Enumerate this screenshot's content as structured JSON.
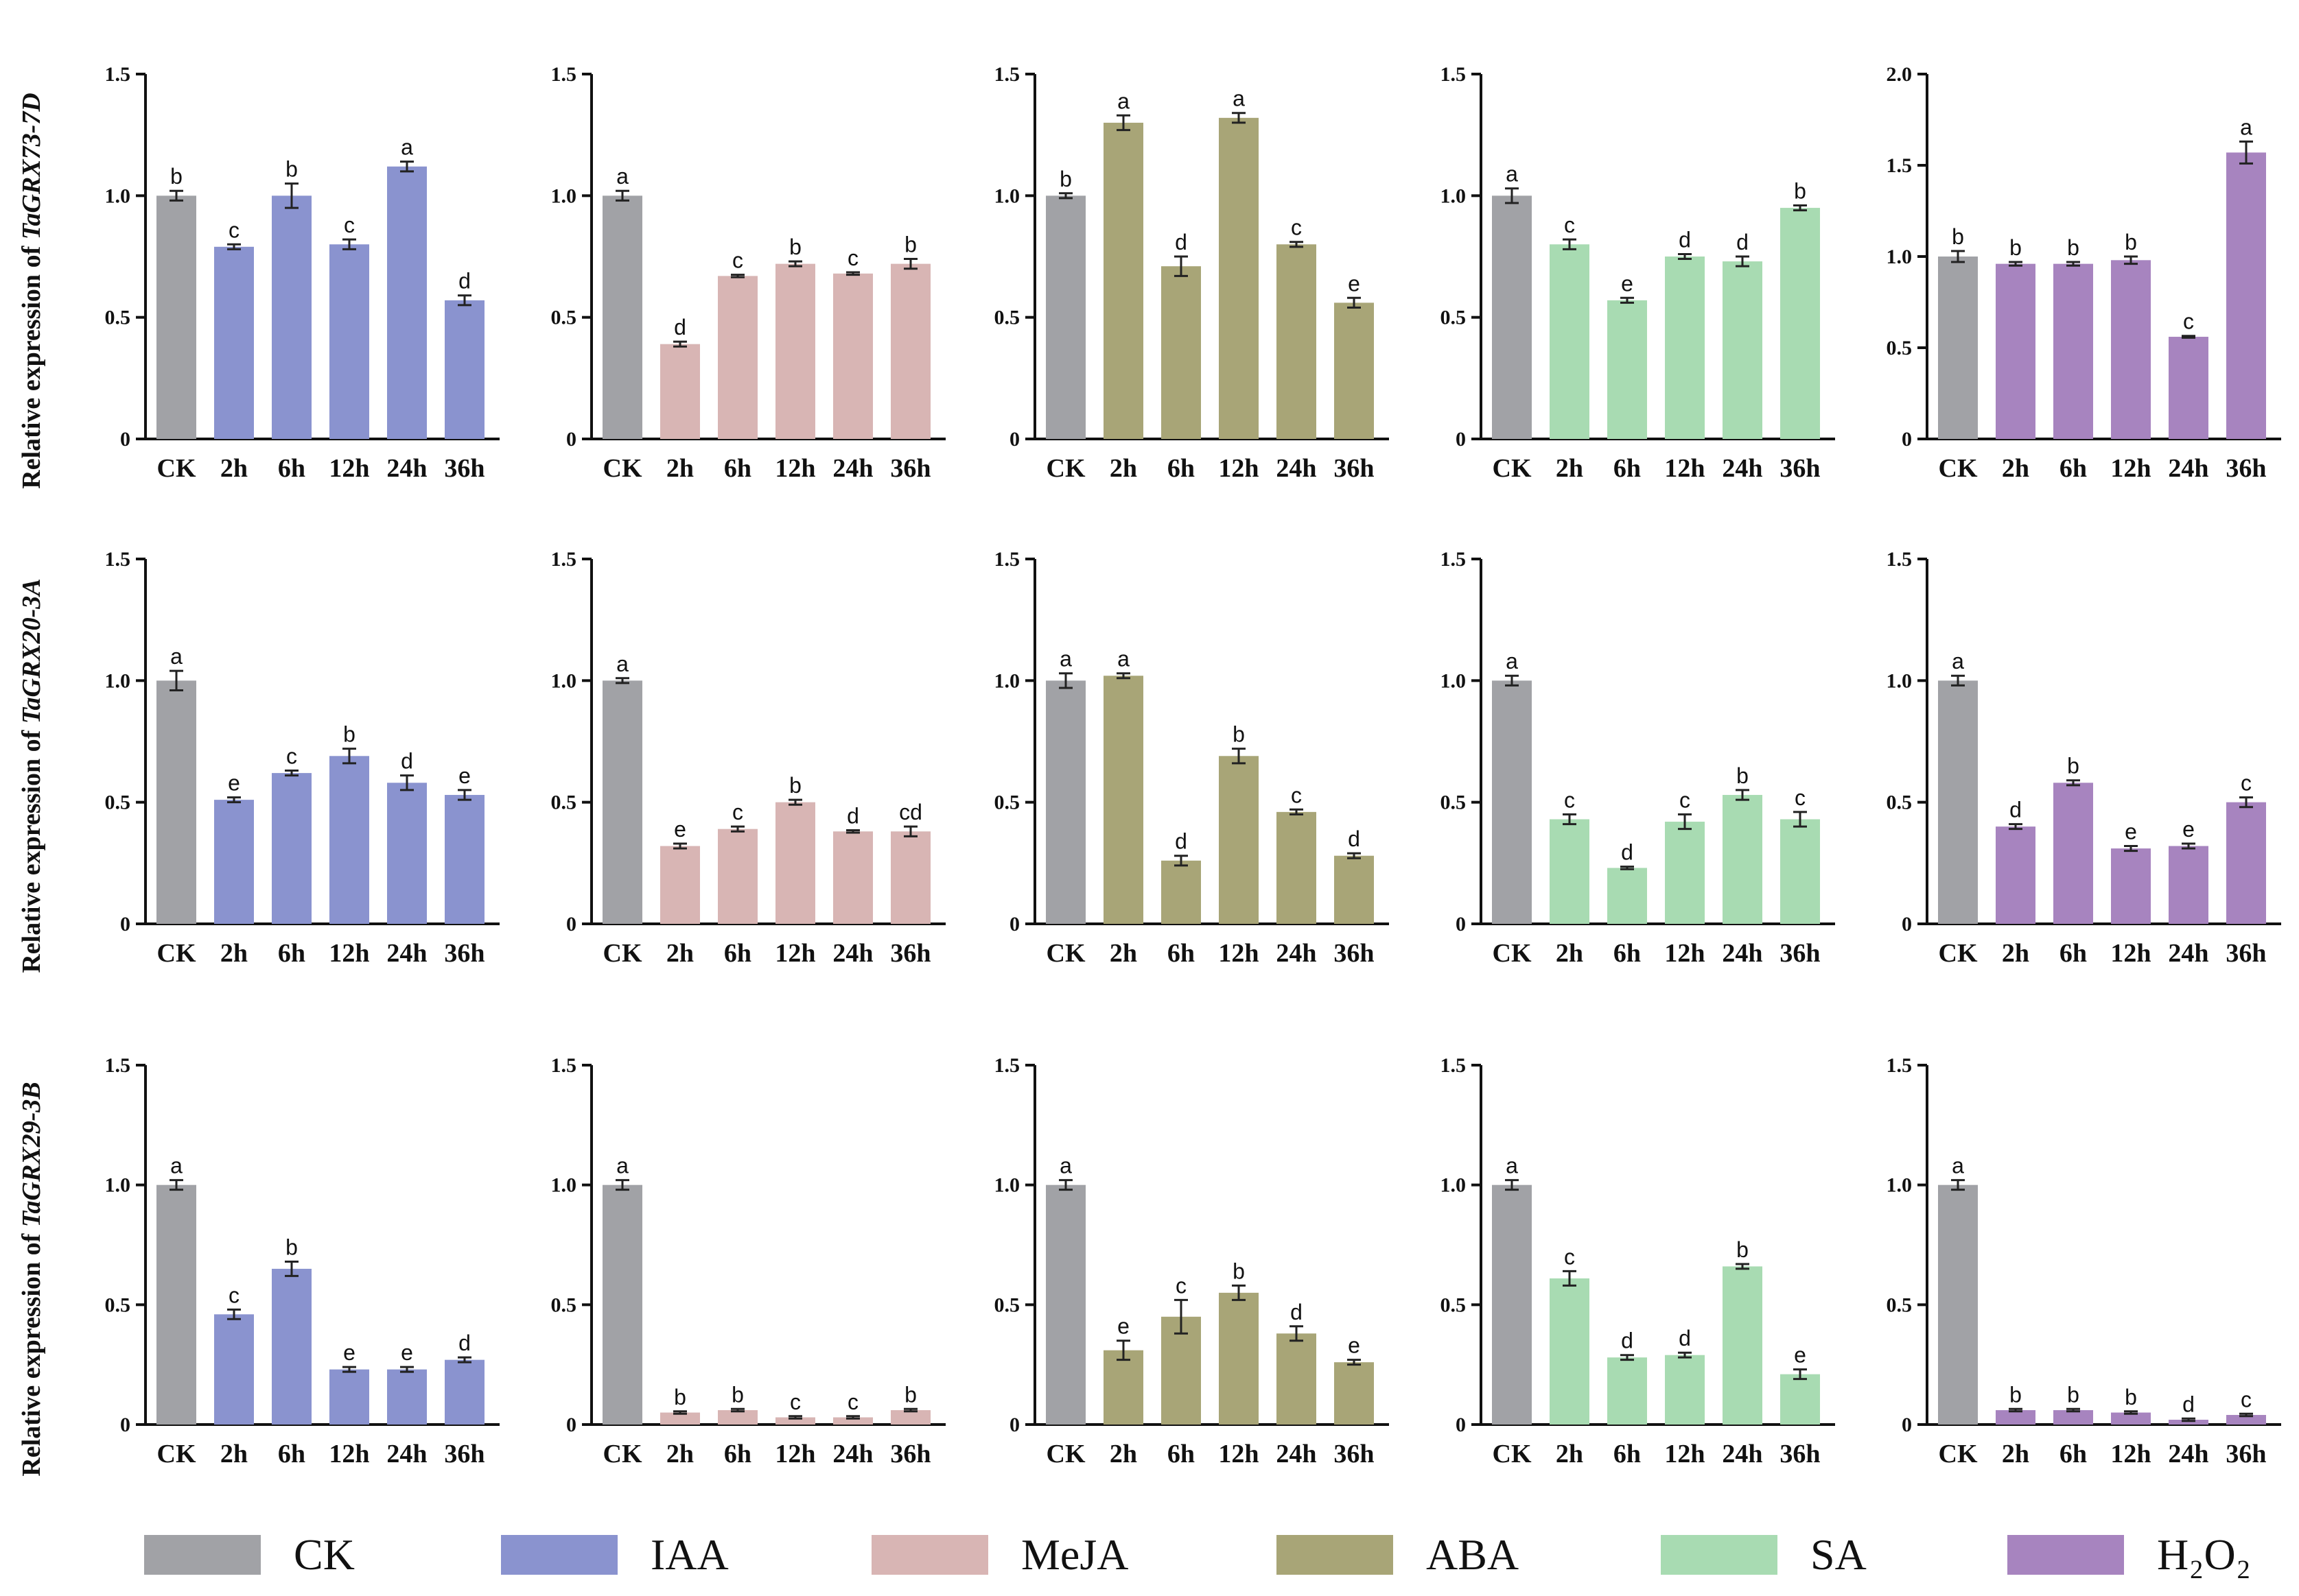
{
  "chart_data": {
    "type": "bar",
    "title": "",
    "categories": [
      "CK",
      "2h",
      "6h",
      "12h",
      "24h",
      "36h"
    ],
    "treatments": [
      "IAA",
      "MeJA",
      "ABA",
      "SA",
      "H2O2"
    ],
    "colors": {
      "CK": "#a1a2a6",
      "IAA": "#8a93cf",
      "MeJA": "#d8b5b4",
      "ABA": "#a8a577",
      "SA": "#a8dbb2",
      "H2O2": "#a784bf"
    },
    "legend": [
      {
        "key": "CK",
        "label": "CK"
      },
      {
        "key": "IAA",
        "label": "IAA"
      },
      {
        "key": "MeJA",
        "label": "MeJA"
      },
      {
        "key": "ABA",
        "label": "ABA"
      },
      {
        "key": "SA",
        "label": "SA"
      },
      {
        "key": "H2O2",
        "label": "H₂O₂"
      }
    ],
    "rows": [
      {
        "ylabel_prefix": "Relative expression of ",
        "gene": "TaGRX73-7D",
        "panels": [
          {
            "treatment": "IAA",
            "ylim": [
              0,
              1.5
            ],
            "yticks": [
              0,
              0.5,
              1.0,
              1.5
            ],
            "tick_labels": [
              "0",
              "0.5",
              "1.0",
              "1.5"
            ],
            "values": [
              1.0,
              0.79,
              1.0,
              0.8,
              1.12,
              0.57
            ],
            "errors": [
              0.02,
              0.01,
              0.05,
              0.02,
              0.02,
              0.02
            ],
            "letters": [
              "b",
              "c",
              "b",
              "c",
              "a",
              "d"
            ]
          },
          {
            "treatment": "MeJA",
            "ylim": [
              0,
              1.5
            ],
            "yticks": [
              0,
              0.5,
              1.0,
              1.5
            ],
            "tick_labels": [
              "0",
              "0.5",
              "1.0",
              "1.5"
            ],
            "values": [
              1.0,
              0.39,
              0.67,
              0.72,
              0.68,
              0.72
            ],
            "errors": [
              0.02,
              0.01,
              0.005,
              0.01,
              0.005,
              0.02
            ],
            "letters": [
              "a",
              "d",
              "c",
              "b",
              "c",
              "b"
            ]
          },
          {
            "treatment": "ABA",
            "ylim": [
              0,
              1.5
            ],
            "yticks": [
              0,
              0.5,
              1.0,
              1.5
            ],
            "tick_labels": [
              "0",
              "0.5",
              "1.0",
              "1.5"
            ],
            "values": [
              1.0,
              1.3,
              0.71,
              1.32,
              0.8,
              0.56
            ],
            "errors": [
              0.01,
              0.03,
              0.04,
              0.02,
              0.01,
              0.02
            ],
            "letters": [
              "b",
              "a",
              "d",
              "a",
              "c",
              "e"
            ]
          },
          {
            "treatment": "SA",
            "ylim": [
              0,
              1.5
            ],
            "yticks": [
              0,
              0.5,
              1.0,
              1.5
            ],
            "tick_labels": [
              "0",
              "0.5",
              "1.0",
              "1.5"
            ],
            "values": [
              1.0,
              0.8,
              0.57,
              0.75,
              0.73,
              0.95
            ],
            "errors": [
              0.03,
              0.02,
              0.01,
              0.01,
              0.02,
              0.01
            ],
            "letters": [
              "a",
              "c",
              "e",
              "d",
              "d",
              "b"
            ]
          },
          {
            "treatment": "H2O2",
            "ylim": [
              0,
              2.0
            ],
            "yticks": [
              0,
              0.5,
              1.0,
              1.5,
              2.0
            ],
            "tick_labels": [
              "0",
              "0.5",
              "1.0",
              "1.5",
              "2.0"
            ],
            "values": [
              1.0,
              0.96,
              0.96,
              0.98,
              0.56,
              1.57
            ],
            "errors": [
              0.03,
              0.01,
              0.01,
              0.02,
              0.005,
              0.06
            ],
            "letters": [
              "b",
              "b",
              "b",
              "b",
              "c",
              "a"
            ]
          }
        ]
      },
      {
        "ylabel_prefix": "Relative expression of ",
        "gene": "TaGRX20-3A",
        "panels": [
          {
            "treatment": "IAA",
            "ylim": [
              0,
              1.5
            ],
            "yticks": [
              0,
              0.5,
              1.0,
              1.5
            ],
            "tick_labels": [
              "0",
              "0.5",
              "1.0",
              "1.5"
            ],
            "values": [
              1.0,
              0.51,
              0.62,
              0.69,
              0.58,
              0.53
            ],
            "errors": [
              0.04,
              0.01,
              0.01,
              0.03,
              0.03,
              0.02
            ],
            "letters": [
              "a",
              "e",
              "c",
              "b",
              "d",
              "e"
            ]
          },
          {
            "treatment": "MeJA",
            "ylim": [
              0,
              1.5
            ],
            "yticks": [
              0,
              0.5,
              1.0,
              1.5
            ],
            "tick_labels": [
              "0",
              "0.5",
              "1.0",
              "1.5"
            ],
            "values": [
              1.0,
              0.32,
              0.39,
              0.5,
              0.38,
              0.38
            ],
            "errors": [
              0.01,
              0.01,
              0.01,
              0.01,
              0.005,
              0.02
            ],
            "letters": [
              "a",
              "e",
              "c",
              "b",
              "d",
              "cd"
            ]
          },
          {
            "treatment": "ABA",
            "ylim": [
              0,
              1.5
            ],
            "yticks": [
              0,
              0.5,
              1.0,
              1.5
            ],
            "tick_labels": [
              "0",
              "0.5",
              "1.0",
              "1.5"
            ],
            "values": [
              1.0,
              1.02,
              0.26,
              0.69,
              0.46,
              0.28
            ],
            "errors": [
              0.03,
              0.01,
              0.02,
              0.03,
              0.01,
              0.01
            ],
            "letters": [
              "a",
              "a",
              "d",
              "b",
              "c",
              "d"
            ]
          },
          {
            "treatment": "SA",
            "ylim": [
              0,
              1.5
            ],
            "yticks": [
              0,
              0.5,
              1.0,
              1.5
            ],
            "tick_labels": [
              "0",
              "0.5",
              "1.0",
              "1.5"
            ],
            "values": [
              1.0,
              0.43,
              0.23,
              0.42,
              0.53,
              0.43
            ],
            "errors": [
              0.02,
              0.02,
              0.005,
              0.03,
              0.02,
              0.03
            ],
            "letters": [
              "a",
              "c",
              "d",
              "c",
              "b",
              "c"
            ]
          },
          {
            "treatment": "H2O2",
            "ylim": [
              0,
              1.5
            ],
            "yticks": [
              0,
              0.5,
              1.0,
              1.5
            ],
            "tick_labels": [
              "0",
              "0.5",
              "1.0",
              "1.5"
            ],
            "values": [
              1.0,
              0.4,
              0.58,
              0.31,
              0.32,
              0.5
            ],
            "errors": [
              0.02,
              0.01,
              0.01,
              0.01,
              0.01,
              0.02
            ],
            "letters": [
              "a",
              "d",
              "b",
              "e",
              "e",
              "c"
            ]
          }
        ]
      },
      {
        "ylabel_prefix": "Relative expression of ",
        "gene": "TaGRX29-3B",
        "panels": [
          {
            "treatment": "IAA",
            "ylim": [
              0,
              1.5
            ],
            "yticks": [
              0,
              0.5,
              1.0,
              1.5
            ],
            "tick_labels": [
              "0",
              "0.5",
              "1.0",
              "1.5"
            ],
            "values": [
              1.0,
              0.46,
              0.65,
              0.23,
              0.23,
              0.27
            ],
            "errors": [
              0.02,
              0.02,
              0.03,
              0.01,
              0.01,
              0.01
            ],
            "letters": [
              "a",
              "c",
              "b",
              "e",
              "e",
              "d"
            ]
          },
          {
            "treatment": "MeJA",
            "ylim": [
              0,
              1.5
            ],
            "yticks": [
              0,
              0.5,
              1.0,
              1.5
            ],
            "tick_labels": [
              "0",
              "0.5",
              "1.0",
              "1.5"
            ],
            "values": [
              1.0,
              0.05,
              0.06,
              0.03,
              0.03,
              0.06
            ],
            "errors": [
              0.02,
              0.005,
              0.005,
              0.005,
              0.005,
              0.005
            ],
            "letters": [
              "a",
              "b",
              "b",
              "c",
              "c",
              "b"
            ]
          },
          {
            "treatment": "ABA",
            "ylim": [
              0,
              1.5
            ],
            "yticks": [
              0,
              0.5,
              1.0,
              1.5
            ],
            "tick_labels": [
              "0",
              "0.5",
              "1.0",
              "1.5"
            ],
            "values": [
              1.0,
              0.31,
              0.45,
              0.55,
              0.38,
              0.26
            ],
            "errors": [
              0.02,
              0.04,
              0.07,
              0.03,
              0.03,
              0.01
            ],
            "letters": [
              "a",
              "e",
              "c",
              "b",
              "d",
              "e"
            ]
          },
          {
            "treatment": "SA",
            "ylim": [
              0,
              1.5
            ],
            "yticks": [
              0,
              0.5,
              1.0,
              1.5
            ],
            "tick_labels": [
              "0",
              "0.5",
              "1.0",
              "1.5"
            ],
            "values": [
              1.0,
              0.61,
              0.28,
              0.29,
              0.66,
              0.21
            ],
            "errors": [
              0.02,
              0.03,
              0.01,
              0.01,
              0.01,
              0.02
            ],
            "letters": [
              "a",
              "c",
              "d",
              "d",
              "b",
              "e"
            ]
          },
          {
            "treatment": "H2O2",
            "ylim": [
              0,
              1.5
            ],
            "yticks": [
              0,
              0.5,
              1.0,
              1.5
            ],
            "tick_labels": [
              "0",
              "0.5",
              "1.0",
              "1.5"
            ],
            "values": [
              1.0,
              0.06,
              0.06,
              0.05,
              0.02,
              0.04
            ],
            "errors": [
              0.02,
              0.005,
              0.005,
              0.005,
              0.005,
              0.005
            ],
            "letters": [
              "a",
              "b",
              "b",
              "b",
              "d",
              "c"
            ]
          }
        ]
      }
    ]
  }
}
